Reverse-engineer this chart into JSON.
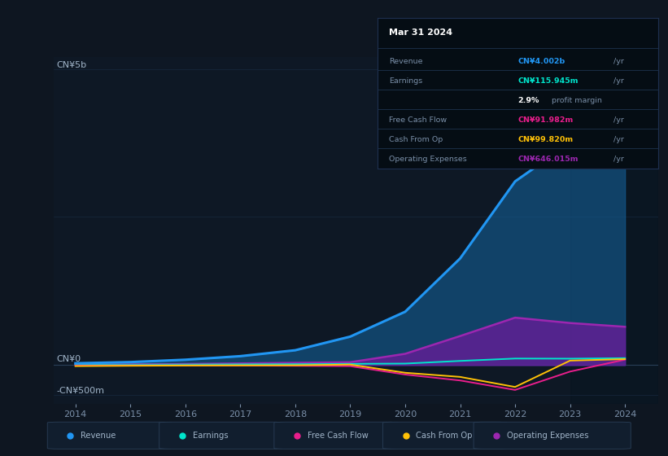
{
  "bg_color": "#0e1621",
  "plot_bg_color": "#0e1825",
  "grid_color": "#1a2d45",
  "text_color": "#7a8fa8",
  "years": [
    2014,
    2015,
    2016,
    2017,
    2018,
    2019,
    2020,
    2021,
    2022,
    2023,
    2024
  ],
  "revenue": [
    30,
    50,
    90,
    150,
    250,
    480,
    900,
    1800,
    3100,
    3750,
    4002
  ],
  "earnings": [
    5,
    7,
    9,
    12,
    15,
    20,
    25,
    70,
    110,
    108,
    116
  ],
  "free_cash_flow": [
    -8,
    -5,
    -6,
    -8,
    -12,
    -18,
    -160,
    -260,
    -420,
    -110,
    92
  ],
  "cash_from_op": [
    -18,
    -12,
    -8,
    -6,
    -4,
    8,
    -130,
    -200,
    -370,
    75,
    100
  ],
  "operating_expenses": [
    8,
    12,
    18,
    28,
    38,
    48,
    190,
    490,
    800,
    710,
    646
  ],
  "revenue_color": "#2196f3",
  "earnings_color": "#00e5cc",
  "free_cash_flow_color": "#e91e8c",
  "cash_from_op_color": "#ffc107",
  "operating_expenses_color": "#9c27b0",
  "revenue_fill_color": "#1565a0",
  "operating_expenses_fill_color": "#6a1b9a",
  "ylabel_5b": "CN¥5b",
  "ylabel_0": "CN¥0",
  "ylabel_neg500m": "-CN¥500m",
  "x_ticks": [
    2014,
    2015,
    2016,
    2017,
    2018,
    2019,
    2020,
    2021,
    2022,
    2023,
    2024
  ],
  "legend_labels": [
    "Revenue",
    "Earnings",
    "Free Cash Flow",
    "Cash From Op",
    "Operating Expenses"
  ],
  "info_box": {
    "date": "Mar 31 2024",
    "revenue_val": "CN¥4.002b",
    "earnings_val": "CN¥115.945m",
    "profit_margin": "2.9%",
    "free_cash_flow_val": "CN¥91.982m",
    "cash_from_op_val": "CN¥99.820m",
    "operating_expenses_val": "CN¥646.015m"
  },
  "ylim_bottom": -650,
  "ylim_top": 5200
}
